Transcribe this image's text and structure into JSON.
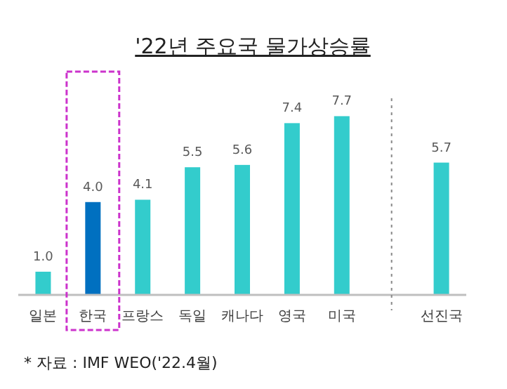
{
  "chart_data": {
    "type": "bar",
    "title": "'22년 주요국 물가상승률",
    "categories": [
      "일본",
      "한국",
      "프랑스",
      "독일",
      "캐나다",
      "영국",
      "미국",
      null,
      "선진국"
    ],
    "values": [
      1.0,
      4.0,
      4.1,
      5.5,
      5.6,
      7.4,
      7.7,
      null,
      5.7
    ],
    "colors": [
      "#33cccc",
      "#0070c0",
      "#33cccc",
      "#33cccc",
      "#33cccc",
      "#33cccc",
      "#33cccc",
      "#33cccc",
      "#33cccc"
    ],
    "value_labels": [
      "1.0",
      "4.0",
      "4.1",
      "5.5",
      "5.6",
      "7.4",
      "7.7",
      null,
      "5.7"
    ],
    "annotations": [
      "* 자료 : IMF WEO('22.4월)"
    ]
  }
}
